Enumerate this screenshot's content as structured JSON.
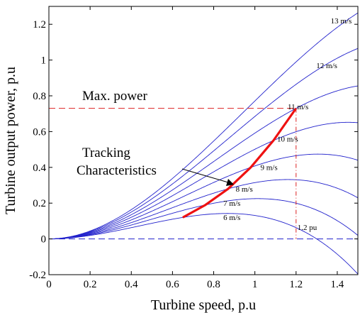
{
  "chart_data": {
    "type": "line",
    "xlabel": "Turbine speed, p.u",
    "ylabel": "Turbine output power, p.u",
    "xlim": [
      0,
      1.5
    ],
    "ylim": [
      -0.2,
      1.3
    ],
    "xticks": [
      0,
      0.2,
      0.4,
      0.6,
      0.8,
      1,
      1.2,
      1.4
    ],
    "xtick_labels": [
      "0",
      "0.2",
      "0.4",
      "0.6",
      "0.8",
      "1",
      "1.2",
      "1.4"
    ],
    "yticks": [
      -0.2,
      0,
      0.2,
      0.4,
      0.6,
      0.8,
      1,
      1.2
    ],
    "ytick_labels": [
      "-0.2",
      "0",
      "0.2",
      "0.4",
      "0.6",
      "0.8",
      "1",
      "1.2"
    ],
    "grid": false,
    "curve_color": "#2222cc",
    "tracking_color": "#ee1111",
    "reference_color": "#dd2222",
    "baseline_color": "#2222cc",
    "series": [
      {
        "name": "6 m/s",
        "vmax": 0.12,
        "x_at_max": 0.65
      },
      {
        "name": "7 m/s",
        "vmax": 0.19,
        "x_at_max": 0.76
      },
      {
        "name": "8 m/s",
        "vmax": 0.28,
        "x_at_max": 0.87
      },
      {
        "name": "9 m/s",
        "vmax": 0.4,
        "x_at_max": 0.98
      },
      {
        "name": "10 m/s",
        "vmax": 0.55,
        "x_at_max": 1.09
      },
      {
        "name": "11 m/s",
        "vmax": 0.73,
        "x_at_max": 1.2
      },
      {
        "name": "12 m/s",
        "vmax": 0.95,
        "x_at_max": 1.31
      },
      {
        "name": "13 m/s",
        "vmax": 1.2,
        "x_at_max": 1.42
      }
    ],
    "tracking_curve": {
      "x": [
        0.65,
        0.76,
        0.87,
        0.98,
        1.09,
        1.2
      ],
      "y": [
        0.12,
        0.19,
        0.28,
        0.4,
        0.55,
        0.73
      ]
    },
    "max_power_line": {
      "y": 0.73,
      "x_end": 1.2
    },
    "rated_speed_line": {
      "x": 1.2,
      "label": "1.2 pu"
    },
    "annotations": {
      "max_power": "Max. power",
      "tracking_line1": "Tracking",
      "tracking_line2": "Characteristics"
    }
  }
}
